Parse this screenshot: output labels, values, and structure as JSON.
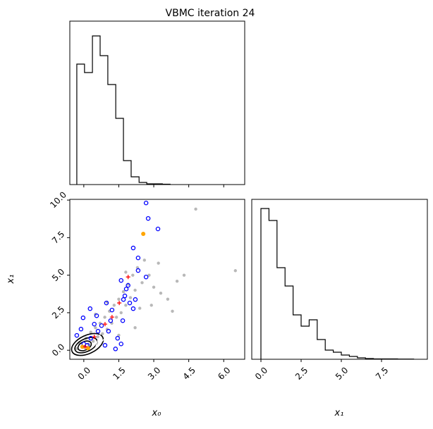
{
  "title": "VBMC iteration 24",
  "chart_data": [
    {
      "type": "histogram",
      "color": "#000000",
      "bins": [
        -0.3,
        0.03,
        0.37,
        0.7,
        1.03,
        1.37,
        1.7,
        2.03,
        2.37,
        2.7,
        3.03,
        3.37,
        3.7
      ],
      "counts": [
        171,
        159,
        211,
        183,
        142,
        94,
        34,
        11,
        3,
        1,
        1,
        0.5
      ],
      "xlim": [
        -0.6,
        6.9
      ],
      "ylim": [
        0,
        232
      ],
      "xticks": [
        {
          "value": 0,
          "label": "0.0"
        },
        1.5,
        {
          "value": 3,
          "label": "3.0"
        },
        4.5,
        {
          "value": 6,
          "label": "6.0"
        }
      ]
    },
    {
      "type": "scatter",
      "x_label": "x₀",
      "y_label": "x₁",
      "xlim": [
        -0.6,
        6.9
      ],
      "ylim": [
        -0.6,
        10.05
      ],
      "xticks": [
        {
          "value": 0,
          "label": "0.0"
        },
        1.5,
        {
          "value": 3,
          "label": "3.0"
        },
        4.5,
        {
          "value": 6,
          "label": "6.0"
        }
      ],
      "yticks": [
        {
          "value": 0,
          "label": "0.0"
        },
        2.5,
        {
          "value": 5,
          "label": "5.0"
        },
        7.5,
        {
          "value": 10,
          "label": "10.0"
        }
      ],
      "series": [
        {
          "marker": "dot-faint",
          "color": "#000000",
          "x": [
            -0.3,
            -0.2,
            0,
            0.1,
            0.2,
            0.3,
            0.4,
            0.5,
            0.6,
            0.7,
            0.8,
            0.9,
            1.0,
            1.1,
            1.2,
            1.3,
            1.4,
            1.5,
            1.6,
            1.7,
            1.8,
            1.9,
            2.0,
            2.1,
            2.2,
            2.3,
            2.5,
            2.6,
            2.8,
            3.0,
            3.3,
            3.6,
            4.0,
            4.8,
            6.5,
            2.4,
            1.0,
            0.5,
            1.8,
            2.9,
            3.2,
            2.2,
            1.5,
            3.8,
            4.3
          ],
          "values": [
            0.1,
            0.5,
            0.2,
            0.8,
            0.4,
            1.2,
            0.6,
            1.5,
            0.9,
            1.8,
            1.1,
            2.2,
            1.4,
            2.6,
            1.8,
            3.0,
            2.2,
            3.4,
            2.5,
            3.9,
            3.0,
            4.4,
            3.5,
            5.0,
            4.0,
            5.5,
            4.5,
            6.0,
            5.0,
            4.2,
            3.8,
            3.4,
            4.6,
            9.4,
            5.3,
            2.8,
            3.2,
            2.4,
            5.2,
            3.0,
            5.8,
            1.5,
            1.0,
            2.6,
            5.0
          ]
        },
        {
          "marker": "hollow",
          "color": "#0000ff",
          "x": [
            2.67,
            2.76,
            3.18,
            2.12,
            2.33,
            2.33,
            2.67,
            1.6,
            1.9,
            1.76,
            1.7,
            0.97,
            0.27,
            2.12,
            -0.03,
            0.55,
            1.15,
            1.67,
            0.76,
            -0.12,
            1.45,
            1.6,
            1.36,
            0.91,
            0.3,
            0,
            0.61,
            1.06,
            1.97,
            2.21,
            1.82,
            0.15,
            -0.3,
            0.45,
            1.21
          ],
          "values": [
            9.81,
            8.78,
            8.08,
            6.81,
            6.15,
            5.31,
            4.88,
            4.65,
            4.32,
            3.62,
            3.38,
            3.15,
            2.77,
            2.77,
            2.16,
            2.3,
            1.97,
            1.97,
            1.64,
            1.41,
            0.8,
            0.42,
            0.09,
            0.33,
            0.8,
            0.42,
            1.27,
            1.27,
            3.15,
            3.38,
            4.08,
            0.33,
            0.99,
            1.74,
            2.68
          ]
        },
        {
          "marker": "dot",
          "color": "#ffa500",
          "x": [
            2.55,
            -0.06,
            0.18
          ],
          "values": [
            7.75,
            0.23,
            0.14
          ]
        },
        {
          "marker": "cross",
          "color": "#ff0000",
          "x": [
            1.9,
            1.52,
            0.91,
            0.45,
            1.21,
            0.06
          ],
          "values": [
            4.88,
            3.15,
            1.74,
            0.89,
            2.21,
            0.23
          ]
        }
      ]
    },
    {
      "type": "histogram",
      "color": "#000000",
      "x_label": "x₁",
      "bins": [
        0,
        0.5,
        1,
        1.5,
        2,
        2.5,
        3,
        3.5,
        4,
        4.5,
        5,
        5.5,
        6,
        6.5,
        7,
        7.5,
        8,
        8.5,
        9,
        9.5
      ],
      "counts": [
        214,
        197,
        130,
        104,
        63,
        47,
        56,
        28,
        13,
        10,
        6,
        4,
        2,
        1,
        0.5,
        0.5,
        0.5,
        0.3,
        0.3
      ],
      "xlim": [
        -0.57,
        10.35
      ],
      "ylim": [
        0,
        227
      ],
      "xticks": [
        {
          "value": 0,
          "label": "0.0"
        },
        2.5,
        {
          "value": 5,
          "label": "5.0"
        },
        7.5
      ]
    }
  ]
}
